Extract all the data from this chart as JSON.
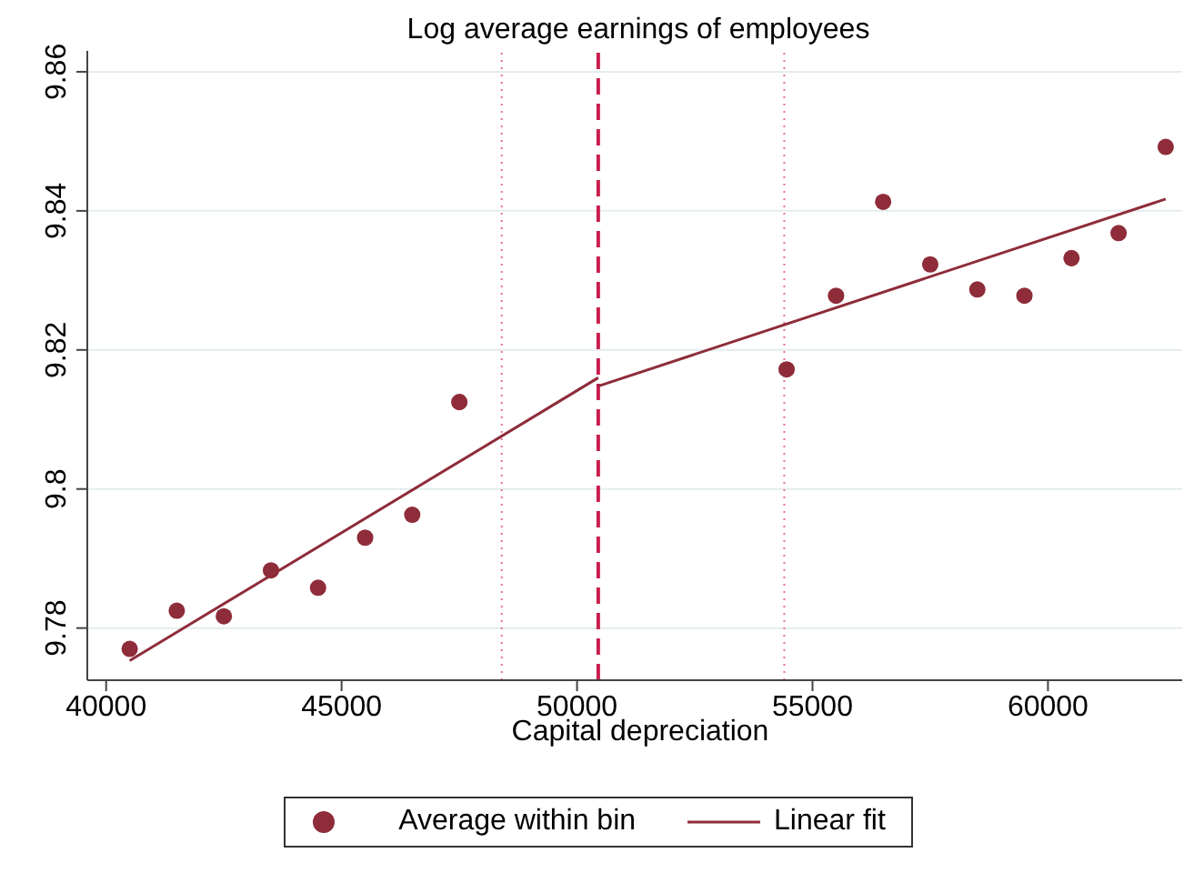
{
  "chart_data": {
    "type": "scatter",
    "title": "Log average earnings of employees",
    "xlabel": "Capital depreciation",
    "xlim": [
      39600,
      62850
    ],
    "xticks": [
      40000,
      45000,
      50000,
      55000,
      60000
    ],
    "ylim": [
      9.7725,
      9.863
    ],
    "yticks": [
      9.78,
      9.8,
      9.82,
      9.84,
      9.86
    ],
    "grid": "y",
    "legend": "bottom",
    "series": [
      {
        "name": "Average within bin",
        "marker": "circle",
        "color": "#8e2c3a",
        "x": [
          40500,
          41500,
          42500,
          43500,
          44500,
          45500,
          46500,
          47500,
          54450,
          55500,
          56500,
          57500,
          58500,
          59500,
          60500,
          61500,
          62500
        ],
        "values": [
          9.777,
          9.7825,
          9.7817,
          9.7883,
          9.7858,
          9.793,
          9.7963,
          9.8125,
          9.8172,
          9.8278,
          9.8413,
          9.8323,
          9.8287,
          9.8278,
          9.8332,
          9.8368,
          9.8492
        ]
      },
      {
        "name": "Linear fit",
        "type": "line",
        "color": "#8e2c3a",
        "line_style": "solid",
        "x": [
          40500,
          50450
        ],
        "values": [
          9.7753,
          9.816
        ]
      },
      {
        "type": "line",
        "color": "#8e2c3a",
        "line_style": "solid",
        "x": [
          50450,
          62500
        ],
        "values": [
          9.8148,
          9.8417
        ]
      }
    ],
    "ref_lines": [
      {
        "axis": "x",
        "value": 50450,
        "color": "#c8204e",
        "line_style": "dashed"
      },
      {
        "axis": "x",
        "value": 48400,
        "color": "#e8708c",
        "line_style": "dotted"
      },
      {
        "axis": "x",
        "value": 54400,
        "color": "#e8708c",
        "line_style": "dotted"
      }
    ]
  }
}
